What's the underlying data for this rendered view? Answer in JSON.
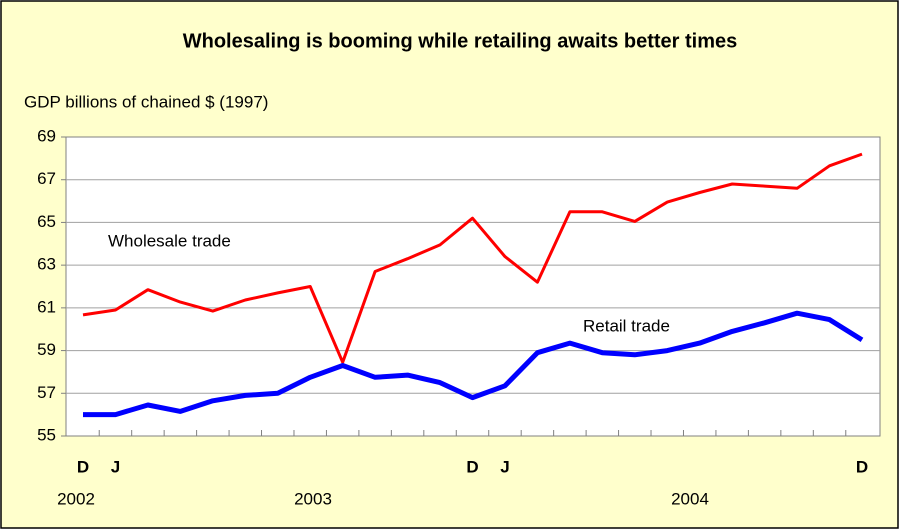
{
  "chart_data": {
    "type": "line",
    "title": "Wholesaling is booming while retailing awaits better times",
    "y_label": "GDP billions of chained $ (1997)",
    "categories": [
      "D",
      "J",
      null,
      null,
      null,
      null,
      null,
      null,
      null,
      null,
      null,
      null,
      "D",
      "J",
      null,
      null,
      null,
      null,
      null,
      null,
      null,
      null,
      null,
      null,
      "D"
    ],
    "year_labels": [
      "2002",
      "2003",
      "2004"
    ],
    "series": [
      {
        "name": "Wholesale trade",
        "color": "#ff0000",
        "values": [
          60.67,
          60.9,
          61.85,
          61.27,
          60.85,
          61.37,
          61.7,
          62.0,
          58.45,
          62.7,
          63.3,
          63.95,
          65.2,
          63.4,
          62.2,
          65.5,
          65.5,
          65.05,
          65.95,
          66.4,
          66.8,
          66.7,
          66.6,
          67.65,
          68.2
        ]
      },
      {
        "name": "Retail trade",
        "color": "#0000ff",
        "values": [
          56.0,
          56.0,
          56.45,
          56.15,
          56.65,
          56.9,
          57.0,
          57.75,
          58.3,
          57.75,
          57.85,
          57.5,
          56.8,
          57.35,
          58.9,
          59.35,
          58.9,
          58.8,
          59.0,
          59.35,
          59.9,
          60.3,
          60.75,
          60.45,
          59.5
        ]
      }
    ],
    "ylim": [
      55,
      69
    ],
    "yticks": [
      55,
      57,
      59,
      61,
      63,
      65,
      67,
      69
    ],
    "grid": true
  }
}
